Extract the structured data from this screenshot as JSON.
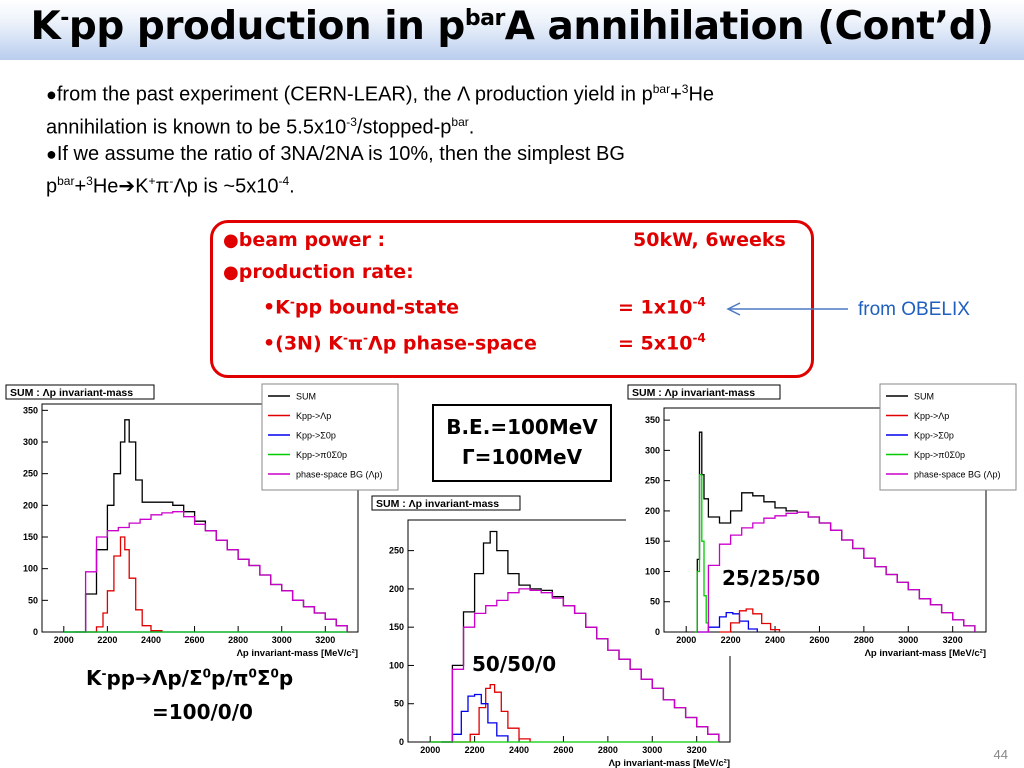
{
  "slide": {
    "title_pre": "K",
    "title_sup1": "-",
    "title_mid": "pp production in p",
    "title_sup2": "bar",
    "title_post": "A annihilation (Cont’d)",
    "page_number": "44"
  },
  "bullets": {
    "b1_a": "from the past experiment (CERN-LEAR), the ",
    "b1_lambda": "Λ",
    "b1_b": " production yield in p",
    "b1_sup_bar": "bar",
    "b1_c": "+",
    "b1_sup3": "3",
    "b1_d": "He",
    "b1_line2_a": "annihilation is known to be 5.5x10",
    "b1_sup_exp": "-3",
    "b1_line2_b": "/stopped-p",
    "b1_sup_bar2": "bar",
    "b1_line2_c": ".",
    "b2_a": "If we assume the ratio of 3NA/2NA is 10%, then the simplest BG",
    "b2_line2_a": "p",
    "b2_sup_bar": "bar",
    "b2_line2_b": "+",
    "b2_sup3": "3",
    "b2_line2_c": "He",
    "b2_arrow": "➔",
    "b2_line2_d": "K",
    "b2_sup_plus": "+",
    "b2_pi": "π",
    "b2_sup_minus": "-",
    "b2_lambda": "Λ",
    "b2_line2_e": "p is ~5x10",
    "b2_sup_exp": "-4",
    "b2_line2_f": "."
  },
  "red_box": {
    "beam_label": "beam power :",
    "beam_value": "50kW, 6weeks",
    "rate_label": "production rate:",
    "item1_a": "•K",
    "item1_sup": "-",
    "item1_b": "pp bound-state",
    "item1_value": "= 1x10",
    "item1_value_sup": "-4",
    "item2_a": "•(3N) K",
    "item2_sup1": "-",
    "item2_pi": "π",
    "item2_sup2": "-",
    "item2_lambda": "Λ",
    "item2_b": "p phase-space",
    "item2_value": "= 5x10",
    "item2_value_sup": "-4",
    "note": "from OBELIX",
    "border_color": "#e00000",
    "note_color": "#1f5fbf"
  },
  "info_box": {
    "line1": "B.E.=100MeV",
    "gamma": "Γ",
    "line2": "=100MeV"
  },
  "captions": {
    "left_a": "K",
    "left_sup": "-",
    "left_b": "pp",
    "left_arrow": "➔",
    "left_c": "Λp/Σ",
    "left_sup0a": "0",
    "left_d": "p/π",
    "left_sup0b": "0",
    "left_e": "Σ",
    "left_sup0c": "0",
    "left_f": "p",
    "left_line2": "=100/0/0",
    "middle": "50/50/0",
    "right": "25/25/50"
  },
  "legend": {
    "entries": [
      "SUM",
      "Kpp->Λp",
      "Kpp->Σ0p",
      "Kpp->π0Σ0p",
      "phase-space BG (Λp)"
    ],
    "colors": [
      "#000000",
      "#e00000",
      "#0000ee",
      "#00cc00",
      "#cc00cc"
    ]
  },
  "chart_data": [
    {
      "type": "line",
      "title": "SUM : Λp invariant-mass",
      "xlabel": "Λp invariant-mass [MeV/c²]",
      "ylabel": "",
      "xlim": [
        1900,
        3350
      ],
      "ylim": [
        0,
        360
      ],
      "xticks": [
        2000,
        2200,
        2400,
        2600,
        2800,
        3000,
        3200
      ],
      "yticks": [
        0,
        50,
        100,
        150,
        200,
        250,
        300,
        350
      ],
      "series": [
        {
          "name": "SUM",
          "color": "#000000",
          "x": [
            2000,
            2050,
            2100,
            2150,
            2200,
            2230,
            2260,
            2280,
            2300,
            2330,
            2360,
            2400,
            2450,
            2500,
            2550,
            2600,
            2650,
            2700,
            2750,
            2800,
            2850,
            2900,
            2950,
            3000,
            3050,
            3100,
            3150,
            3200,
            3250,
            3300
          ],
          "y": [
            0,
            0,
            60,
            130,
            200,
            250,
            300,
            335,
            300,
            240,
            205,
            205,
            205,
            200,
            190,
            175,
            160,
            145,
            130,
            115,
            105,
            90,
            75,
            65,
            50,
            40,
            30,
            20,
            10,
            0
          ]
        },
        {
          "name": "Kpp->Λp",
          "color": "#e00000",
          "x": [
            2100,
            2150,
            2180,
            2200,
            2230,
            2260,
            2280,
            2300,
            2330,
            2360,
            2400,
            2450
          ],
          "y": [
            0,
            8,
            30,
            65,
            120,
            150,
            130,
            85,
            35,
            10,
            2,
            0
          ]
        },
        {
          "name": "phase-space BG (Λp)",
          "color": "#cc00cc",
          "x": [
            2050,
            2100,
            2150,
            2200,
            2250,
            2300,
            2350,
            2400,
            2450,
            2500,
            2550,
            2600,
            2650,
            2700,
            2750,
            2800,
            2850,
            2900,
            2950,
            3000,
            3050,
            3100,
            3150,
            3200,
            3250,
            3300
          ],
          "y": [
            0,
            95,
            150,
            160,
            165,
            172,
            178,
            185,
            188,
            190,
            182,
            170,
            160,
            145,
            130,
            115,
            105,
            90,
            75,
            65,
            50,
            40,
            30,
            20,
            10,
            0
          ]
        },
        {
          "name": "Kpp->Σ0p",
          "color": "#0000ee",
          "x": [
            2000,
            3300
          ],
          "y": [
            0,
            0
          ]
        },
        {
          "name": "Kpp->π0Σ0p",
          "color": "#00cc00",
          "x": [
            2000,
            3300
          ],
          "y": [
            0,
            0
          ]
        }
      ]
    },
    {
      "type": "line",
      "title": "SUM : Λp invariant-mass",
      "xlabel": "Λp invariant-mass [MeV/c²]",
      "ylabel": "",
      "xlim": [
        1900,
        3350
      ],
      "ylim": [
        0,
        290
      ],
      "xticks": [
        2000,
        2200,
        2400,
        2600,
        2800,
        3000,
        3200
      ],
      "yticks": [
        0,
        50,
        100,
        150,
        200,
        250
      ],
      "series": [
        {
          "name": "SUM",
          "color": "#000000",
          "x": [
            2000,
            2050,
            2100,
            2150,
            2200,
            2240,
            2270,
            2300,
            2350,
            2400,
            2450,
            2500,
            2550,
            2600,
            2650,
            2700,
            2750,
            2800,
            2850,
            2900,
            2950,
            3000,
            3050,
            3100,
            3150,
            3200,
            3250,
            3300
          ],
          "y": [
            0,
            0,
            100,
            170,
            220,
            260,
            275,
            250,
            220,
            205,
            200,
            198,
            190,
            178,
            168,
            150,
            135,
            120,
            108,
            95,
            82,
            70,
            55,
            45,
            32,
            20,
            10,
            0
          ]
        },
        {
          "name": "Kpp->Λp",
          "color": "#e00000",
          "x": [
            2100,
            2180,
            2220,
            2250,
            2270,
            2290,
            2320,
            2350,
            2400,
            2450
          ],
          "y": [
            0,
            10,
            45,
            70,
            75,
            65,
            40,
            18,
            4,
            0
          ]
        },
        {
          "name": "Kpp->Σ0p",
          "color": "#0000ee",
          "x": [
            2050,
            2100,
            2140,
            2170,
            2200,
            2230,
            2260,
            2300,
            2350
          ],
          "y": [
            0,
            10,
            40,
            60,
            62,
            50,
            25,
            8,
            0
          ]
        },
        {
          "name": "phase-space BG (Λp)",
          "color": "#cc00cc",
          "x": [
            2050,
            2100,
            2150,
            2200,
            2250,
            2300,
            2350,
            2400,
            2450,
            2500,
            2550,
            2600,
            2650,
            2700,
            2750,
            2800,
            2850,
            2900,
            2950,
            3000,
            3050,
            3100,
            3150,
            3200,
            3250,
            3300
          ],
          "y": [
            0,
            95,
            150,
            168,
            178,
            185,
            195,
            200,
            198,
            195,
            188,
            178,
            168,
            150,
            135,
            120,
            108,
            95,
            82,
            70,
            55,
            45,
            32,
            20,
            10,
            0
          ]
        },
        {
          "name": "Kpp->π0Σ0p",
          "color": "#00cc00",
          "x": [
            2000,
            3300
          ],
          "y": [
            0,
            0
          ]
        }
      ]
    },
    {
      "type": "line",
      "title": "SUM : Λp invariant-mass",
      "xlabel": "Λp invariant-mass [MeV/c²]",
      "ylabel": "",
      "xlim": [
        1900,
        3350
      ],
      "ylim": [
        0,
        370
      ],
      "xticks": [
        2000,
        2200,
        2400,
        2600,
        2800,
        3000,
        3200
      ],
      "yticks": [
        0,
        50,
        100,
        150,
        200,
        250,
        300,
        350
      ],
      "series": [
        {
          "name": "SUM",
          "color": "#000000",
          "x": [
            2040,
            2050,
            2060,
            2070,
            2080,
            2100,
            2150,
            2200,
            2250,
            2300,
            2350,
            2400,
            2450,
            2500,
            2550,
            2600,
            2650,
            2700,
            2750,
            2800,
            2850,
            2900,
            2950,
            3000,
            3050,
            3100,
            3150,
            3200,
            3250,
            3300
          ],
          "y": [
            0,
            120,
            330,
            260,
            220,
            190,
            180,
            200,
            230,
            225,
            215,
            205,
            200,
            198,
            190,
            180,
            168,
            152,
            138,
            122,
            108,
            95,
            82,
            70,
            55,
            45,
            32,
            20,
            10,
            0
          ]
        },
        {
          "name": "Kpp->π0Σ0p",
          "color": "#00cc00",
          "x": [
            2040,
            2050,
            2060,
            2070,
            2080,
            2090,
            2100
          ],
          "y": [
            0,
            100,
            260,
            150,
            60,
            15,
            0
          ]
        },
        {
          "name": "Kpp->Σ0p",
          "color": "#0000ee",
          "x": [
            2050,
            2100,
            2150,
            2180,
            2210,
            2240,
            2280,
            2320
          ],
          "y": [
            0,
            8,
            25,
            32,
            30,
            18,
            5,
            0
          ]
        },
        {
          "name": "Kpp->Λp",
          "color": "#e00000",
          "x": [
            2150,
            2200,
            2240,
            2270,
            2300,
            2340,
            2380,
            2420
          ],
          "y": [
            0,
            15,
            35,
            38,
            30,
            14,
            4,
            0
          ]
        },
        {
          "name": "phase-space BG (Λp)",
          "color": "#cc00cc",
          "x": [
            2050,
            2100,
            2150,
            2200,
            2250,
            2300,
            2350,
            2400,
            2450,
            2500,
            2550,
            2600,
            2650,
            2700,
            2750,
            2800,
            2850,
            2900,
            2950,
            3000,
            3050,
            3100,
            3150,
            3200,
            3250,
            3300
          ],
          "y": [
            0,
            110,
            145,
            160,
            172,
            180,
            188,
            192,
            196,
            198,
            190,
            180,
            168,
            152,
            138,
            122,
            108,
            95,
            82,
            70,
            55,
            45,
            32,
            20,
            10,
            0
          ]
        }
      ]
    }
  ]
}
